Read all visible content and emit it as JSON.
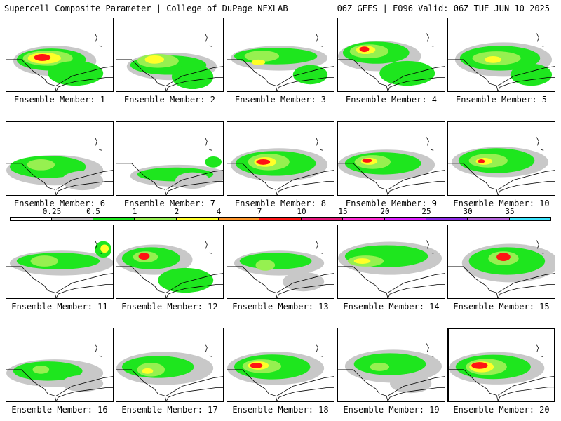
{
  "header": {
    "title_left": "Supercell Composite Parameter | College of DuPage NEXLAB",
    "title_right": "06Z GEFS | F096 Valid: 06Z TUE JUN 10 2025"
  },
  "legend": {
    "levels": [
      "0.25",
      "0.5",
      "1",
      "2",
      "4",
      "7",
      "10",
      "15",
      "20",
      "25",
      "30",
      "35"
    ],
    "colors": [
      "#ffffff",
      "#c8c8c8",
      "#1ee61e",
      "#96f050",
      "#ffff28",
      "#ff9628",
      "#ff1414",
      "#e6147a",
      "#ff28d2",
      "#dc1eff",
      "#8c28e6",
      "#b464dc",
      "#3ce6ff"
    ]
  },
  "panels": [
    {
      "label": "Ensemble Member: 1"
    },
    {
      "label": "Ensemble Member: 2"
    },
    {
      "label": "Ensemble Member: 3"
    },
    {
      "label": "Ensemble Member: 4"
    },
    {
      "label": "Ensemble Member: 5"
    },
    {
      "label": "Ensemble Member: 6"
    },
    {
      "label": "Ensemble Member: 7"
    },
    {
      "label": "Ensemble Member: 8"
    },
    {
      "label": "Ensemble Member: 9"
    },
    {
      "label": "Ensemble Member: 10"
    },
    {
      "label": "Ensemble Member: 11"
    },
    {
      "label": "Ensemble Member: 12"
    },
    {
      "label": "Ensemble Member: 13"
    },
    {
      "label": "Ensemble Member: 14"
    },
    {
      "label": "Ensemble Member: 15"
    },
    {
      "label": "Ensemble Member: 16"
    },
    {
      "label": "Ensemble Member: 17"
    },
    {
      "label": "Ensemble Member: 18"
    },
    {
      "label": "Ensemble Member: 19"
    },
    {
      "label": "Ensemble Member: 20",
      "selected": true
    }
  ]
}
